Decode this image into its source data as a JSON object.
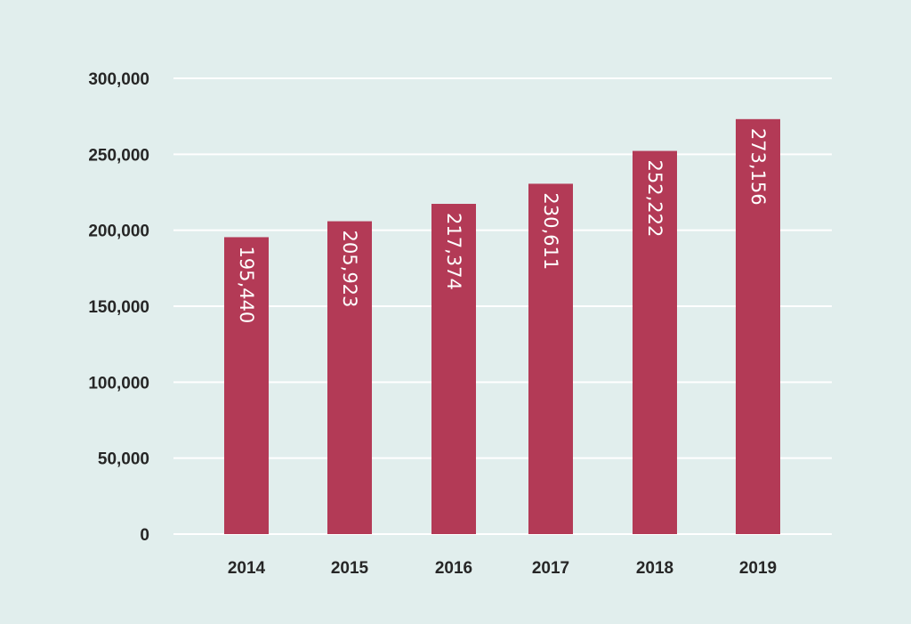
{
  "chart_data": {
    "type": "bar",
    "title": "",
    "xlabel": "",
    "ylabel": "",
    "categories": [
      "2014",
      "2015",
      "2016",
      "2017",
      "2018",
      "2019"
    ],
    "values": [
      195440,
      205923,
      217374,
      230611,
      252222,
      273156
    ],
    "data_labels": [
      "195,440",
      "205,923",
      "217,374",
      "230,611",
      "252,222",
      "273,156"
    ],
    "ylim": [
      0,
      300000
    ],
    "yticks": [
      0,
      50000,
      100000,
      150000,
      200000,
      250000,
      300000
    ],
    "ytick_labels": [
      "0",
      "50,000",
      "100,000",
      "150,000",
      "200,000",
      "250,000",
      "300,000"
    ],
    "grid": true,
    "legend": "none",
    "colors": {
      "bar": "#b33a56",
      "background": "#e1eeed",
      "grid": "#ffffff",
      "text": "#262626",
      "data_label": "#ffffff"
    }
  }
}
